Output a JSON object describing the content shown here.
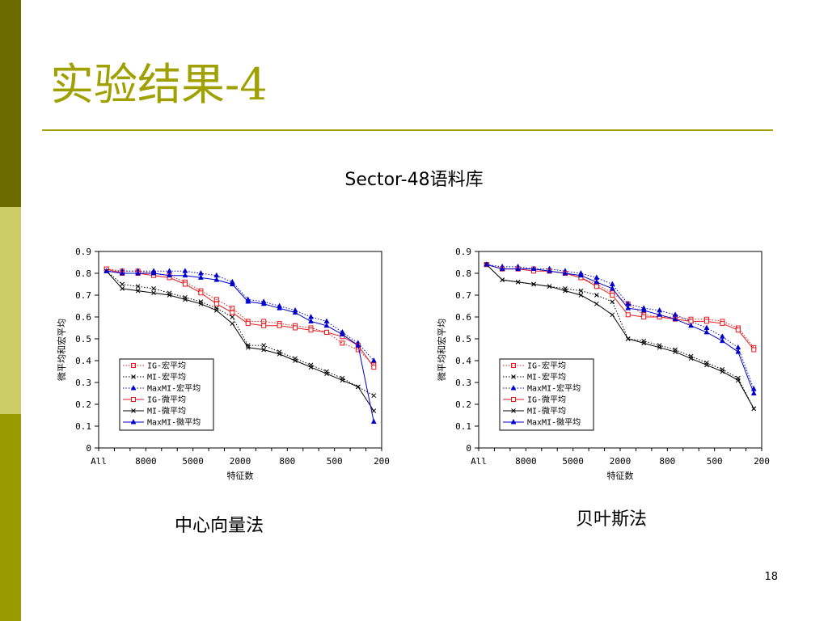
{
  "slide": {
    "title": "实验结果-4",
    "subtitle": "Sector-48语料库",
    "page_number": "18",
    "colors": {
      "accent": "#a0a000",
      "bar_dark": "#6b6b00",
      "bar_light": "#cccc66",
      "bar_mid": "#999900"
    }
  },
  "chart_data": [
    {
      "type": "line",
      "caption": "中心向量法",
      "xlabel": "特征数",
      "ylabel": "微平均和宏平均",
      "ylim": [
        0,
        0.9
      ],
      "yticks": [
        "0",
        "0.1",
        "0.2",
        "0.3",
        "0.4",
        "0.5",
        "0.6",
        "0.7",
        "0.8",
        "0.9"
      ],
      "xtick_labels": [
        "All",
        "8000",
        "5000",
        "2000",
        "800",
        "500",
        "200"
      ],
      "grid": false,
      "legend_position": "bottom-left",
      "series": [
        {
          "name": "IG-宏平均",
          "color": "#e41a1c",
          "dash": "dotted",
          "marker": "square",
          "values": [
            0.82,
            0.81,
            0.81,
            0.8,
            0.79,
            0.76,
            0.72,
            0.68,
            0.64,
            0.58,
            0.58,
            0.57,
            0.56,
            0.55,
            0.53,
            0.48,
            0.45,
            0.38
          ]
        },
        {
          "name": "MI-宏平均",
          "color": "#000000",
          "dash": "dotted",
          "marker": "x",
          "values": [
            0.81,
            0.75,
            0.74,
            0.73,
            0.71,
            0.69,
            0.67,
            0.64,
            0.6,
            0.47,
            0.47,
            0.44,
            0.41,
            0.38,
            0.35,
            0.32,
            0.28,
            0.24
          ]
        },
        {
          "name": "MaxMI-宏平均",
          "color": "#0000cc",
          "dash": "dotted",
          "marker": "triangle",
          "values": [
            0.81,
            0.81,
            0.81,
            0.81,
            0.81,
            0.81,
            0.8,
            0.79,
            0.76,
            0.68,
            0.67,
            0.65,
            0.63,
            0.6,
            0.58,
            0.53,
            0.48,
            0.4
          ]
        },
        {
          "name": "IG-微平均",
          "color": "#e41a1c",
          "dash": "solid",
          "marker": "square-open",
          "values": [
            0.82,
            0.8,
            0.8,
            0.79,
            0.78,
            0.75,
            0.71,
            0.66,
            0.62,
            0.57,
            0.56,
            0.56,
            0.55,
            0.54,
            0.53,
            0.51,
            0.47,
            0.37
          ]
        },
        {
          "name": "MI-微平均",
          "color": "#000000",
          "dash": "solid",
          "marker": "x",
          "values": [
            0.81,
            0.73,
            0.72,
            0.71,
            0.7,
            0.68,
            0.66,
            0.63,
            0.57,
            0.46,
            0.45,
            0.43,
            0.4,
            0.37,
            0.34,
            0.31,
            0.28,
            0.17
          ]
        },
        {
          "name": "MaxMI-微平均",
          "color": "#0000cc",
          "dash": "solid",
          "marker": "triangle",
          "values": [
            0.81,
            0.8,
            0.8,
            0.8,
            0.79,
            0.79,
            0.78,
            0.77,
            0.75,
            0.67,
            0.66,
            0.64,
            0.62,
            0.58,
            0.56,
            0.52,
            0.47,
            0.12
          ]
        }
      ]
    },
    {
      "type": "line",
      "caption": "贝叶斯法",
      "xlabel": "特征数",
      "ylabel": "微平均和宏平均",
      "ylim": [
        0,
        0.9
      ],
      "yticks": [
        "0",
        "0.1",
        "0.2",
        "0.3",
        "0.4",
        "0.5",
        "0.6",
        "0.7",
        "0.8",
        "0.9"
      ],
      "xtick_labels": [
        "All",
        "8000",
        "5000",
        "2000",
        "800",
        "500",
        "200"
      ],
      "grid": false,
      "legend_position": "bottom-left",
      "series": [
        {
          "name": "IG-宏平均",
          "color": "#e41a1c",
          "dash": "dotted",
          "marker": "square",
          "values": [
            0.84,
            0.82,
            0.82,
            0.82,
            0.81,
            0.8,
            0.78,
            0.75,
            0.71,
            0.66,
            0.61,
            0.6,
            0.6,
            0.59,
            0.59,
            0.58,
            0.55,
            0.46
          ]
        },
        {
          "name": "MI-宏平均",
          "color": "#000000",
          "dash": "dotted",
          "marker": "x",
          "values": [
            0.84,
            0.77,
            0.76,
            0.75,
            0.74,
            0.73,
            0.72,
            0.7,
            0.67,
            0.5,
            0.49,
            0.47,
            0.45,
            0.42,
            0.39,
            0.36,
            0.32,
            0.18
          ]
        },
        {
          "name": "MaxMI-宏平均",
          "color": "#0000cc",
          "dash": "dotted",
          "marker": "triangle",
          "values": [
            0.84,
            0.83,
            0.83,
            0.82,
            0.82,
            0.81,
            0.8,
            0.78,
            0.75,
            0.66,
            0.64,
            0.63,
            0.61,
            0.58,
            0.55,
            0.51,
            0.46,
            0.27
          ]
        },
        {
          "name": "IG-微平均",
          "color": "#e41a1c",
          "dash": "solid",
          "marker": "square-open",
          "values": [
            0.84,
            0.82,
            0.82,
            0.81,
            0.81,
            0.8,
            0.78,
            0.74,
            0.7,
            0.61,
            0.6,
            0.6,
            0.59,
            0.58,
            0.58,
            0.57,
            0.54,
            0.45
          ]
        },
        {
          "name": "MI-微平均",
          "color": "#000000",
          "dash": "solid",
          "marker": "x",
          "values": [
            0.84,
            0.77,
            0.76,
            0.75,
            0.74,
            0.72,
            0.7,
            0.66,
            0.61,
            0.5,
            0.48,
            0.46,
            0.44,
            0.41,
            0.38,
            0.35,
            0.31,
            0.18
          ]
        },
        {
          "name": "MaxMI-微平均",
          "color": "#0000cc",
          "dash": "solid",
          "marker": "triangle",
          "values": [
            0.84,
            0.82,
            0.82,
            0.82,
            0.81,
            0.8,
            0.79,
            0.76,
            0.73,
            0.64,
            0.63,
            0.61,
            0.59,
            0.56,
            0.53,
            0.49,
            0.44,
            0.25
          ]
        }
      ]
    }
  ]
}
